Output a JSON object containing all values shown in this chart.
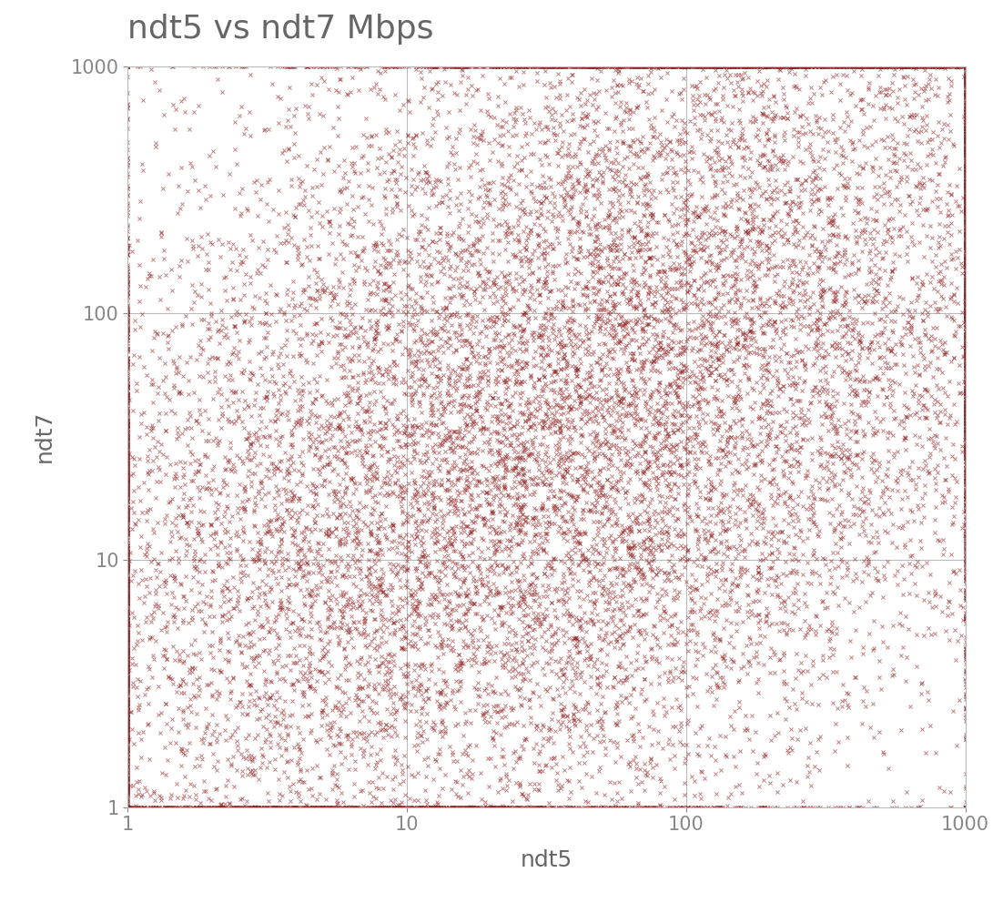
{
  "title": "ndt5 vs ndt7 Mbps",
  "xlabel": "ndt5",
  "ylabel": "ndt7",
  "title_fontsize": 26,
  "label_fontsize": 18,
  "tick_fontsize": 15,
  "marker": "x",
  "marker_color": "#8B1A1A",
  "marker_size": 3,
  "marker_linewidth": 0.7,
  "alpha": 0.55,
  "xlim": [
    1,
    1000
  ],
  "ylim": [
    1,
    1000
  ],
  "background_color": "#ffffff",
  "grid_color": "#bbbbbb",
  "title_color": "#666666",
  "axis_color": "#888888",
  "n_points": 18000,
  "seed": 42
}
